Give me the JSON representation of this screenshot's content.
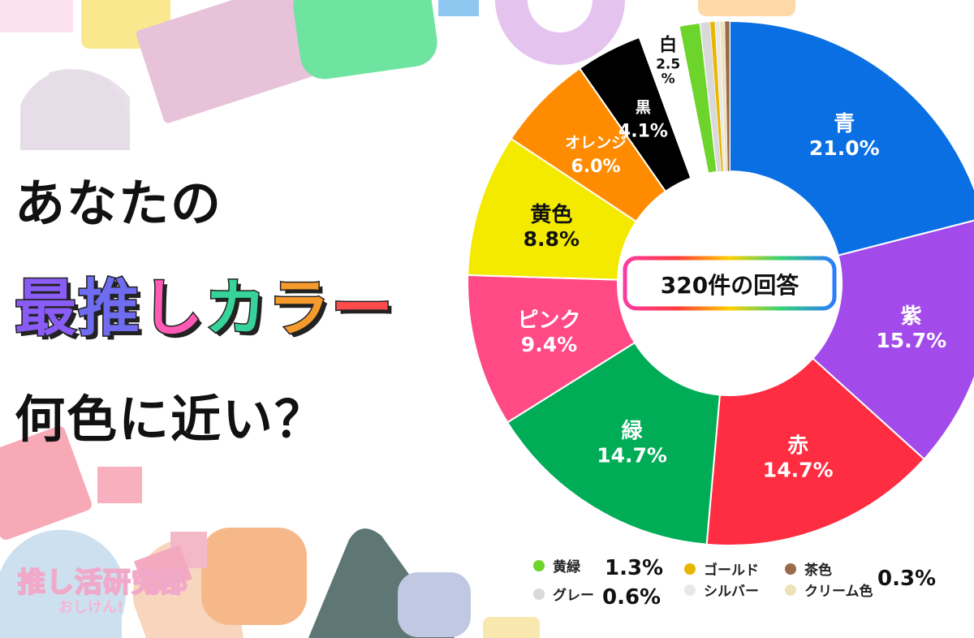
{
  "title": {
    "line1": "あなたの",
    "line2": "最推しカラー",
    "line3": "何色に近い？"
  },
  "logo": {
    "main": "推し活研究部",
    "sub": "おしけん!"
  },
  "center_label": "320件の回答",
  "legend": {
    "items": [
      {
        "label": "黄緑",
        "color": "#6cd42a"
      },
      {
        "label": "ゴールド",
        "color": "#e8b600"
      },
      {
        "label": "茶色",
        "color": "#9a6a4a"
      },
      {
        "label": "グレー",
        "color": "#d9d9d9"
      },
      {
        "label": "シルバー",
        "color": "#e8e8e8"
      },
      {
        "label": "クリーム色",
        "color": "#efe2b8"
      }
    ],
    "value_yellowgreen": "1.3%",
    "value_gray": "0.6%",
    "value_small": "0.3%"
  },
  "chart_data": {
    "type": "pie",
    "donut": true,
    "title": "",
    "total_label": "320件の回答",
    "slices": [
      {
        "label": "青",
        "value": 21.0,
        "color": "#0a6fe3",
        "text": "21.0%"
      },
      {
        "label": "紫",
        "value": 15.7,
        "color": "#a24bea",
        "text": "15.7%"
      },
      {
        "label": "赤",
        "value": 14.7,
        "color": "#ff2d41",
        "text": "14.7%"
      },
      {
        "label": "緑",
        "value": 14.7,
        "color": "#00ad56",
        "text": "14.7%"
      },
      {
        "label": "ピンク",
        "value": 9.4,
        "color": "#ff4a86",
        "text": "9.4%"
      },
      {
        "label": "黄色",
        "value": 8.8,
        "color": "#f4ea00",
        "text": "8.8%"
      },
      {
        "label": "オレンジ",
        "value": 6.0,
        "color": "#ff8c00",
        "text": "6.0%"
      },
      {
        "label": "黒",
        "value": 4.1,
        "color": "#000000",
        "text": "4.1%"
      },
      {
        "label": "白",
        "value": 2.5,
        "color": "#ffffff",
        "text": "2.5\n%"
      },
      {
        "label": "黄緑",
        "value": 1.3,
        "color": "#6cd42a",
        "text": ""
      },
      {
        "label": "グレー",
        "value": 0.6,
        "color": "#d9d9d9",
        "text": ""
      },
      {
        "label": "ゴールド",
        "value": 0.3,
        "color": "#e8b600",
        "text": ""
      },
      {
        "label": "シルバー",
        "value": 0.3,
        "color": "#e8e8e8",
        "text": ""
      },
      {
        "label": "クリーム色",
        "value": 0.3,
        "color": "#efe2b8",
        "text": ""
      },
      {
        "label": "茶色",
        "value": 0.3,
        "color": "#9a6a4a",
        "text": ""
      }
    ]
  }
}
